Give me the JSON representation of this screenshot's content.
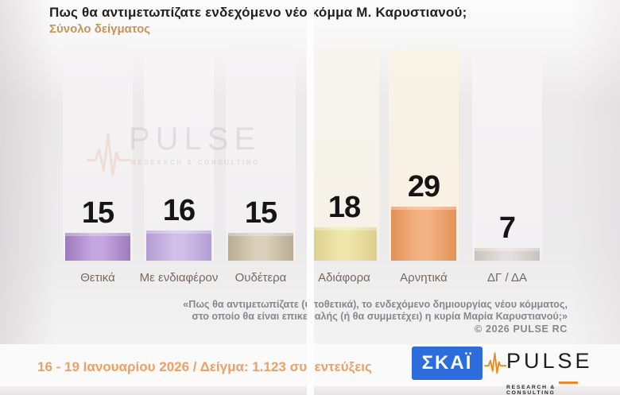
{
  "title": "Πως θα αντιμετωπίζατε ενδεχόμενο νέο κόμμα Μ. Καρυστιανού;",
  "subtitle": "Σύνολο δείγματος",
  "watermark": {
    "name": "PULSE",
    "tagline": "RESEARCH & CONSULTING"
  },
  "chart_data": {
    "type": "bar",
    "title": "Πως θα αντιμετωπίζατε ενδεχόμενο νέο κόμμα Μ. Καρυστιανού;",
    "subtitle": "Σύνολο δείγματος",
    "categories": [
      "Θετικά",
      "Με ενδιαφέρον",
      "Ουδέτερα",
      "Αδιάφορα",
      "Αρνητικά",
      "ΔΓ / ΔΑ"
    ],
    "values": [
      15,
      16,
      15,
      18,
      29,
      7
    ],
    "xlabel": "",
    "ylabel": "",
    "ylim": [
      0,
      100
    ],
    "grid": false,
    "legend": false,
    "value_labels": "above bars",
    "bar_styles": [
      {
        "edge": "#9c7abc",
        "mid": "#c5a7e0",
        "band": "#f5f3f4",
        "band2": "#f1eff0"
      },
      {
        "edge": "#b29cd2",
        "mid": "#d0bfe8",
        "band": "#f6f4f5",
        "band2": "#f2f0f1"
      },
      {
        "edge": "#b9ac94",
        "mid": "#d9cfba",
        "band": "#f5f3f4",
        "band2": "#f1eff0"
      },
      {
        "edge": "#dcce8c",
        "mid": "#efe6ac",
        "band": "#f7f5ee",
        "band2": "#f5f1e8"
      },
      {
        "edge": "#e29257",
        "mid": "#f3b284",
        "band": "#f9f3e8",
        "band2": "#f8f0e2"
      },
      {
        "edge": "#c9c3bc",
        "mid": "#e2dedc",
        "band": "#f6f4f5",
        "band2": "#f2f0f1"
      }
    ]
  },
  "footnote": {
    "line1": "«Πως θα αντιμετωπίζατε (υποθετικά), το ενδεχόμενο δημιουργίας νέου κόμματος,",
    "line2": "στο οποίο θα είναι επικεφαλής (ή θα συμμετέχει) η κυρία Μαρία Καρυστιανού;»",
    "copyright": "© 2026 PULSE RC"
  },
  "footer": {
    "fieldwork": "16 - 19 Ιανουαρίου 2026 / Δείγμα: 1.123 συνεντεύξεις",
    "skai_logo": "ΣΚΑΪ",
    "pulse_name": "PULSE",
    "pulse_tagline": "RESEARCH & CONSULTING"
  },
  "colors": {
    "title_text": "#242021",
    "subtitle_orange": "#c8935a",
    "value_text": "#161415",
    "category_text": "#78675e",
    "footnote_gray": "#87868c",
    "fieldwork_orange": "#eda065",
    "skai_blue": "#2c6cdc",
    "pulse_orange": "#ef8b1e",
    "seam_white": "#fdfdfd"
  }
}
